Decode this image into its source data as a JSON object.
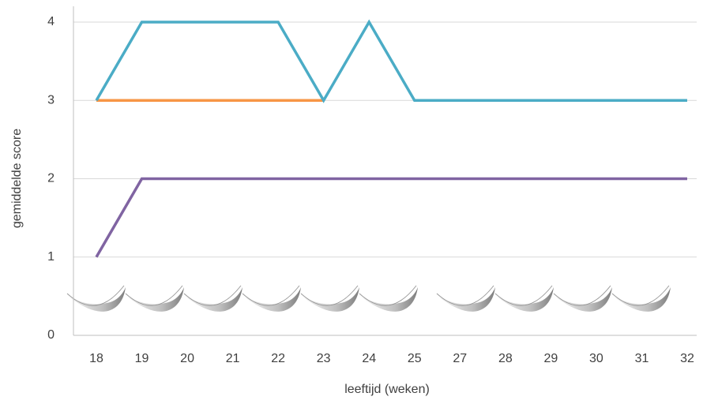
{
  "chart_data": {
    "type": "line",
    "x_label": "leeftijd (weken)",
    "y_label": "gemiddelde score",
    "categories": [
      "18",
      "19",
      "20",
      "21",
      "22",
      "23",
      "24",
      "25",
      "27",
      "28",
      "29",
      "30",
      "31",
      "32"
    ],
    "series": [
      {
        "color": "#f79646",
        "values": [
          3,
          3,
          3,
          3,
          3,
          3,
          null,
          null,
          null,
          null,
          null,
          null,
          null,
          null
        ]
      },
      {
        "color": "#4bacc6",
        "values": [
          3,
          4,
          4,
          4,
          4,
          3,
          4,
          3,
          3,
          3,
          3,
          3,
          3,
          3
        ]
      },
      {
        "color": "#8064a2",
        "values": [
          1,
          2,
          2,
          2,
          2,
          2,
          2,
          2,
          2,
          2,
          2,
          2,
          2,
          2
        ]
      }
    ],
    "ylim": [
      0,
      4
    ],
    "yticks": [
      0,
      1,
      2,
      3,
      4
    ],
    "grid": true
  }
}
